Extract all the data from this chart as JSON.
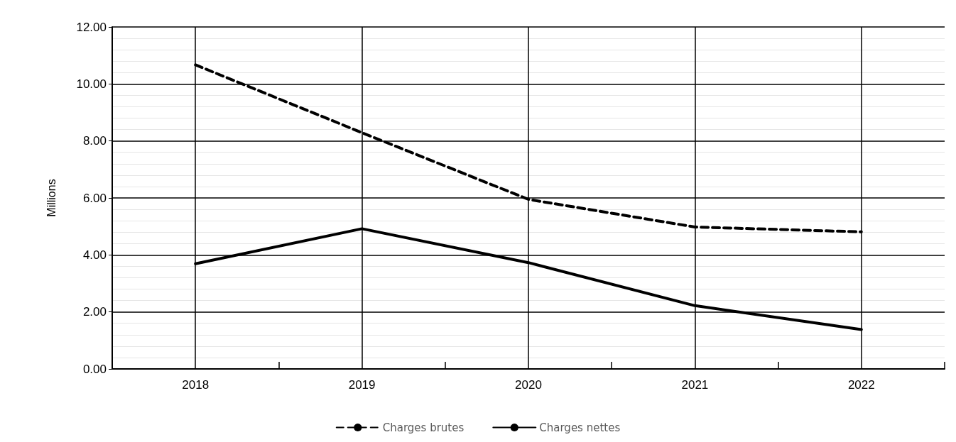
{
  "chart_data": {
    "type": "line",
    "ylabel": "Millions",
    "categories": [
      "2018",
      "2019",
      "2020",
      "2021",
      "2022"
    ],
    "series": [
      {
        "name": "Charges brutes",
        "color": "#000000",
        "line_style": "dashed",
        "values": [
          10.67,
          8.29,
          5.95,
          4.98,
          4.81
        ]
      },
      {
        "name": "Charges nettes",
        "color": "#000000",
        "line_style": "solid",
        "values": [
          3.69,
          4.92,
          3.73,
          2.22,
          1.38
        ]
      }
    ],
    "ylim": [
      0,
      12
    ],
    "yticks": [
      {
        "value": 0,
        "label": "0.00"
      },
      {
        "value": 2,
        "label": "2.00"
      },
      {
        "value": 4,
        "label": "4.00"
      },
      {
        "value": 6,
        "label": "6.00"
      },
      {
        "value": 8,
        "label": "8.00"
      },
      {
        "value": 10,
        "label": "10.00"
      },
      {
        "value": 12,
        "label": "12.00"
      }
    ],
    "grid": true,
    "legend": "bottom",
    "marker": "none"
  }
}
